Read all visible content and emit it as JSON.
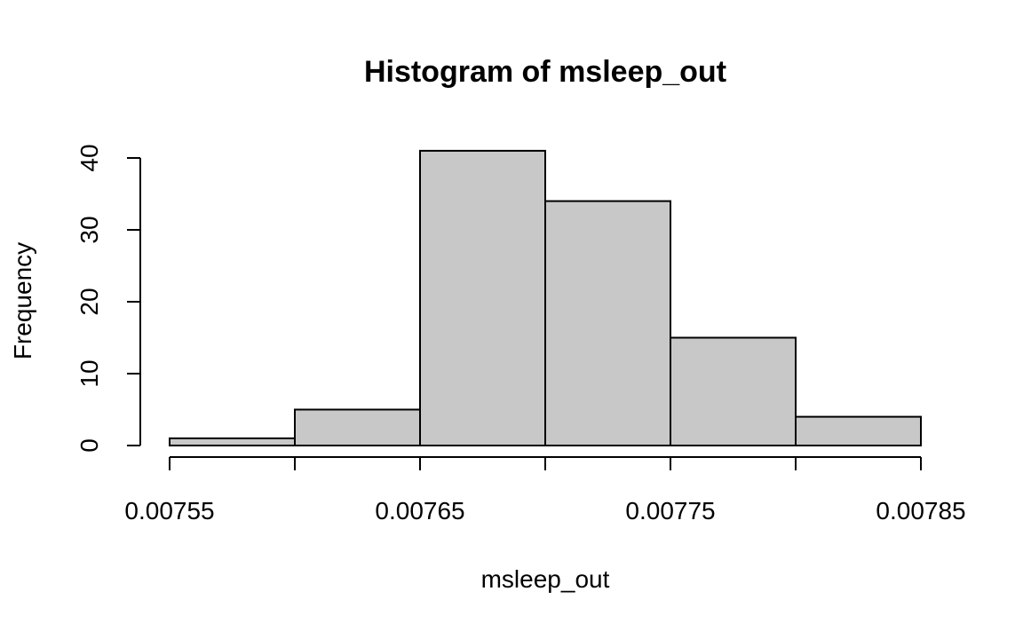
{
  "chart_data": {
    "type": "bar",
    "title": "Histogram of msleep_out",
    "xlabel": "msleep_out",
    "ylabel": "Frequency",
    "bins": [
      {
        "start": 0.00755,
        "end": 0.0076,
        "count": 1
      },
      {
        "start": 0.0076,
        "end": 0.00765,
        "count": 5
      },
      {
        "start": 0.00765,
        "end": 0.0077,
        "count": 41
      },
      {
        "start": 0.0077,
        "end": 0.00775,
        "count": 34
      },
      {
        "start": 0.00775,
        "end": 0.0078,
        "count": 15
      },
      {
        "start": 0.0078,
        "end": 0.00785,
        "count": 4
      }
    ],
    "xlim": [
      0.00755,
      0.00785
    ],
    "ylim": [
      0,
      40
    ],
    "x_ticks": [
      0.00755,
      0.0076,
      0.00765,
      0.0077,
      0.00775,
      0.0078,
      0.00785
    ],
    "x_tick_labels": [
      "0.00755",
      "",
      "0.00765",
      "",
      "0.00775",
      "",
      "0.00785"
    ],
    "y_ticks": [
      0,
      10,
      20,
      30,
      40
    ],
    "y_tick_labels": [
      "0",
      "10",
      "20",
      "30",
      "40"
    ],
    "grid": false,
    "bar_color": "#c8c8c8",
    "edge_color": "#000000"
  }
}
